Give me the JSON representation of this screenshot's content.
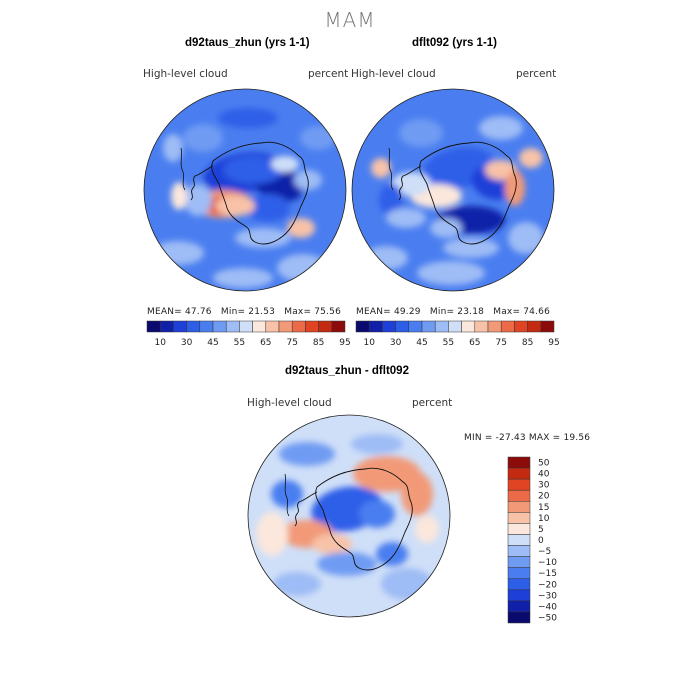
{
  "page_title": "MAM",
  "panels": [
    {
      "title": "d92taus_zhun (yrs 1-1)",
      "variable": "High-level cloud",
      "units": "percent",
      "stats": {
        "mean_label": "MEAN=",
        "mean": "47.76",
        "min_label": "Min=",
        "min": "21.53",
        "max_label": "Max=",
        "max": "75.56"
      }
    },
    {
      "title": "dflt092 (yrs 1-1)",
      "variable": "High-level cloud",
      "units": "percent",
      "stats": {
        "mean_label": "MEAN=",
        "mean": "49.29",
        "min_label": "Min=",
        "min": "23.18",
        "max_label": "Max=",
        "max": "74.66"
      }
    },
    {
      "title": "d92taus_zhun - dflt092",
      "variable": "High-level cloud",
      "units": "percent",
      "minmax_text": "MIN = -27.43 MAX =  19.56"
    }
  ],
  "chart_data": [
    {
      "type": "heatmap",
      "title": "d92taus_zhun (yrs 1-1)",
      "projection": "south-polar-stereographic",
      "field": "High-level cloud (percent)",
      "mean": 47.76,
      "min": 21.53,
      "max": 75.56,
      "levels": [
        10,
        20,
        30,
        40,
        45,
        50,
        55,
        60,
        65,
        70,
        75,
        80,
        85,
        90,
        95
      ],
      "colorbar_tick_labels": [
        "10",
        "30",
        "45",
        "55",
        "65",
        "75",
        "85",
        "95"
      ]
    },
    {
      "type": "heatmap",
      "title": "dflt092 (yrs 1-1)",
      "projection": "south-polar-stereographic",
      "field": "High-level cloud (percent)",
      "mean": 49.29,
      "min": 23.18,
      "max": 74.66,
      "levels": [
        10,
        20,
        30,
        40,
        45,
        50,
        55,
        60,
        65,
        70,
        75,
        80,
        85,
        90,
        95
      ],
      "colorbar_tick_labels": [
        "10",
        "30",
        "45",
        "55",
        "65",
        "75",
        "85",
        "95"
      ]
    },
    {
      "type": "heatmap",
      "title": "d92taus_zhun - dflt092",
      "projection": "south-polar-stereographic",
      "field": "High-level cloud difference (percent)",
      "min": -27.43,
      "max": 19.56,
      "levels": [
        -50,
        -40,
        -30,
        -20,
        -15,
        -10,
        -5,
        0,
        5,
        10,
        15,
        20,
        30,
        40,
        50
      ],
      "colorbar_tick_labels": [
        "50",
        "40",
        "30",
        "20",
        "15",
        "10",
        "5",
        "0",
        "−5",
        "−10",
        "−15",
        "−20",
        "−30",
        "−40",
        "−50"
      ]
    }
  ],
  "colors": {
    "scale": [
      "#0a0a6e",
      "#1020a8",
      "#1e3fd8",
      "#2d5ee8",
      "#4a7ef0",
      "#6f9bf3",
      "#9ebcf5",
      "#cfdff8",
      "#fbe7dc",
      "#f8c2a8",
      "#f29a78",
      "#ec6a48",
      "#e04422",
      "#c42a12",
      "#8c0c0c"
    ],
    "coast": "#111111"
  }
}
